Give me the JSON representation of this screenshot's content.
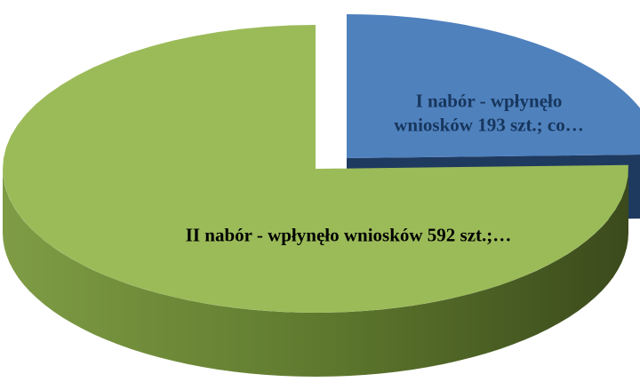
{
  "chart_data": {
    "type": "pie3d",
    "categories": [
      "I nabór - wpłynęło wniosków 193 szt.; co…",
      "II nabór - wpłynęło wniosków 592 szt.;…"
    ],
    "values": [
      193,
      592
    ],
    "colors": [
      "#4f81bd",
      "#9bbb59"
    ],
    "side_colors": [
      "#1f3a5f",
      "#5f7a2e"
    ],
    "exploded": [
      true,
      false
    ]
  }
}
